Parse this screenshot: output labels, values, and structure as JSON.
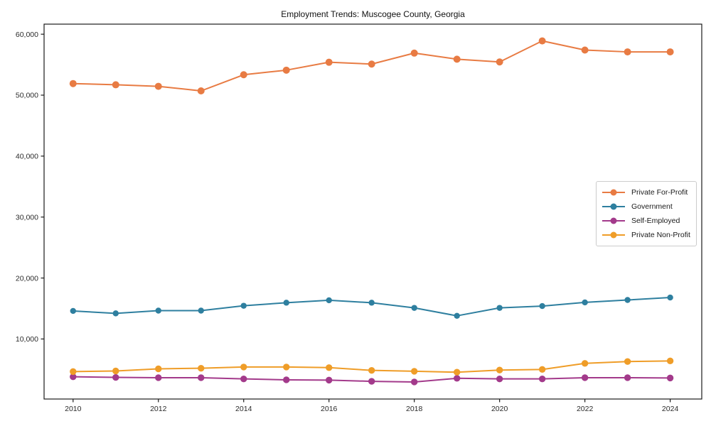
{
  "figure": {
    "background": "#ffffff"
  },
  "chart_data": {
    "type": "line",
    "title": "Employment Trends: Muscogee County, Georgia",
    "xlabel": "",
    "ylabel": "",
    "x": [
      2010,
      2011,
      2012,
      2013,
      2014,
      2015,
      2016,
      2017,
      2018,
      2019,
      2020,
      2021,
      2022,
      2023,
      2024
    ],
    "series": [
      {
        "name": "Private For-Profit",
        "color": "#E87B43",
        "values": [
          51900,
          51700,
          51450,
          50700,
          53350,
          54100,
          55400,
          55100,
          56900,
          55900,
          55450,
          58900,
          57400,
          57100,
          57100
        ]
      },
      {
        "name": "Government",
        "color": "#2E7F9F",
        "values": [
          14600,
          14200,
          14650,
          14650,
          15450,
          15950,
          16350,
          15950,
          15100,
          13800,
          15100,
          15400,
          16000,
          16400,
          16800
        ]
      },
      {
        "name": "Self-Employed",
        "color": "#A33A8B",
        "values": [
          3800,
          3700,
          3650,
          3650,
          3450,
          3300,
          3250,
          3050,
          2950,
          3550,
          3450,
          3450,
          3650,
          3650,
          3600
        ]
      },
      {
        "name": "Private Non-Profit",
        "color": "#EF9D28",
        "values": [
          4650,
          4750,
          5100,
          5200,
          5400,
          5400,
          5300,
          4850,
          4700,
          4550,
          4900,
          5000,
          6000,
          6300,
          6400
        ]
      }
    ],
    "yticks": [
      10000,
      20000,
      30000,
      40000,
      50000,
      60000
    ],
    "ytick_labels": [
      "10,000",
      "20,000",
      "30,000",
      "40,000",
      "50,000",
      "60,000"
    ],
    "xticks": [
      2010,
      2012,
      2014,
      2016,
      2018,
      2020,
      2022,
      2024
    ],
    "xtick_labels": [
      "2010",
      "2012",
      "2014",
      "2016",
      "2018",
      "2020",
      "2022",
      "2024"
    ],
    "xlim": [
      2009.32,
      2024.74
    ],
    "ylim": [
      150,
      61650
    ],
    "grid": false,
    "legend_position": "center right",
    "axis_color": "#1a1a1a",
    "tick_label_color": "#2b2b2b",
    "legend_border_color": "#cccccc"
  }
}
